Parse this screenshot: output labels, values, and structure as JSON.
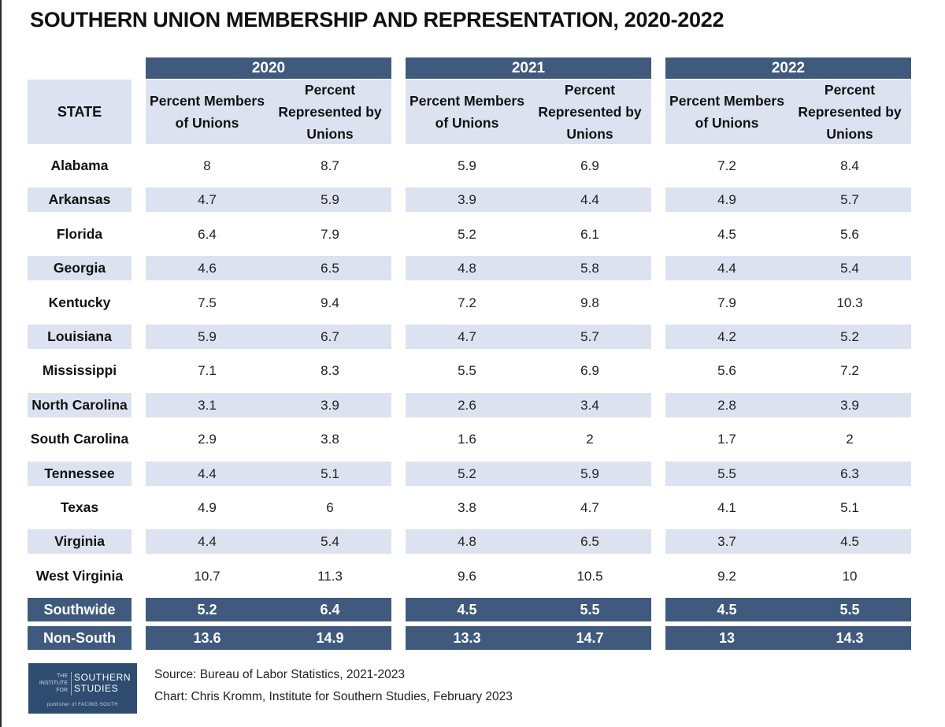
{
  "title": "SOUTHERN UNION MEMBERSHIP AND REPRESENTATION, 2020-2022",
  "chart_data": {
    "type": "table",
    "title": "SOUTHERN UNION MEMBERSHIP AND REPRESENTATION, 2020-2022",
    "state_header": "STATE",
    "years": [
      "2020",
      "2021",
      "2022"
    ],
    "col_headers": {
      "members": [
        "Percent Members",
        "of Unions"
      ],
      "represented": [
        "Percent",
        "Represented by",
        "Unions"
      ]
    },
    "rows": [
      {
        "state": "Alabama",
        "values": [
          "8",
          "8.7",
          "5.9",
          "6.9",
          "7.2",
          "8.4"
        ]
      },
      {
        "state": "Arkansas",
        "values": [
          "4.7",
          "5.9",
          "3.9",
          "4.4",
          "4.9",
          "5.7"
        ]
      },
      {
        "state": "Florida",
        "values": [
          "6.4",
          "7.9",
          "5.2",
          "6.1",
          "4.5",
          "5.6"
        ]
      },
      {
        "state": "Georgia",
        "values": [
          "4.6",
          "6.5",
          "4.8",
          "5.8",
          "4.4",
          "5.4"
        ]
      },
      {
        "state": "Kentucky",
        "values": [
          "7.5",
          "9.4",
          "7.2",
          "9.8",
          "7.9",
          "10.3"
        ]
      },
      {
        "state": "Louisiana",
        "values": [
          "5.9",
          "6.7",
          "4.7",
          "5.7",
          "4.2",
          "5.2"
        ]
      },
      {
        "state": "Mississippi",
        "values": [
          "7.1",
          "8.3",
          "5.5",
          "6.9",
          "5.6",
          "7.2"
        ]
      },
      {
        "state": "North Carolina",
        "values": [
          "3.1",
          "3.9",
          "2.6",
          "3.4",
          "2.8",
          "3.9"
        ]
      },
      {
        "state": "South Carolina",
        "values": [
          "2.9",
          "3.8",
          "1.6",
          "2",
          "1.7",
          "2"
        ]
      },
      {
        "state": "Tennessee",
        "values": [
          "4.4",
          "5.1",
          "5.2",
          "5.9",
          "5.5",
          "6.3"
        ]
      },
      {
        "state": "Texas",
        "values": [
          "4.9",
          "6",
          "3.8",
          "4.7",
          "4.1",
          "5.1"
        ]
      },
      {
        "state": "Virginia",
        "values": [
          "4.4",
          "5.4",
          "4.8",
          "6.5",
          "3.7",
          "4.5"
        ]
      },
      {
        "state": "West Virginia",
        "values": [
          "10.7",
          "11.3",
          "9.6",
          "10.5",
          "9.2",
          "10"
        ]
      }
    ],
    "summary_rows": [
      {
        "state": "Southwide",
        "values": [
          "5.2",
          "6.4",
          "4.5",
          "5.5",
          "4.5",
          "5.5"
        ]
      },
      {
        "state": "Non-South",
        "values": [
          "13.6",
          "14.9",
          "13.3",
          "14.7",
          "13",
          "14.3"
        ]
      }
    ]
  },
  "footer": {
    "source": "Source:  Bureau of Labor Statistics, 2021-2023",
    "credit": "Chart:  Chris Kromm, Institute for Southern Studies, February 2023"
  },
  "logo": {
    "small_lines": [
      "THE",
      "INSTITUTE",
      "FOR"
    ],
    "main_lines": [
      "SOUTHERN",
      "STUDIES"
    ],
    "sub": "publisher of FACING SOUTH"
  },
  "colors": {
    "header_band": "#3f5a7d",
    "light_band": "#dde2f1",
    "logo_bg": "#2e4c70"
  }
}
